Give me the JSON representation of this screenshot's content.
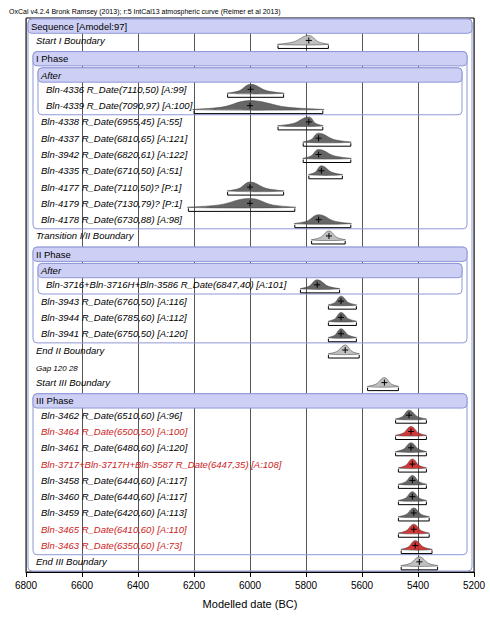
{
  "chart_data": {
    "type": "oxcal_multiplot",
    "title": "OxCal v4.2.4 Bronk Ramsey (2013); r:5 IntCal13 atmospheric curve (Reimer et al 2013)",
    "x_label": "Modelled date (BC)",
    "xlim": [
      6800,
      5200
    ],
    "xticks": [
      6800,
      6600,
      6400,
      6200,
      6000,
      5800,
      5600,
      5400,
      5200
    ],
    "grid": true,
    "model": {
      "kind": "sequence",
      "label": "Sequence [Amodel:97]",
      "items": [
        {
          "kind": "boundary",
          "label": "Start I Boundary",
          "color": "#000000",
          "mean": 5790,
          "range": [
            5900,
            5720
          ]
        },
        {
          "kind": "phase",
          "label": "I Phase",
          "items": [
            {
              "kind": "after",
              "label": "After",
              "items": [
                {
                  "kind": "date",
                  "label": "Bln-4336 R_Date(7110,50) [A:99]",
                  "color": "#000000",
                  "mean": 5998,
                  "range": [
                    6080,
                    5880
                  ]
                },
                {
                  "kind": "date",
                  "label": "Bln-4339 R_Date(7090,97) [A:100]",
                  "color": "#000000",
                  "mean": 6000,
                  "range": [
                    6200,
                    5740
                  ]
                }
              ]
            },
            {
              "kind": "date",
              "label": "Bln-4338 R_Date(6955,45) [A:55]",
              "color": "#000000",
              "mean": 5790,
              "range": [
                5900,
                5740
              ]
            },
            {
              "kind": "date",
              "label": "Bln-4337 R_Date(6810,65) [A:121]",
              "color": "#000000",
              "mean": 5755,
              "range": [
                5810,
                5640
              ]
            },
            {
              "kind": "date",
              "label": "Bln-3942 R_Date(6820,61) [A:122]",
              "color": "#000000",
              "mean": 5755,
              "range": [
                5810,
                5640
              ]
            },
            {
              "kind": "date",
              "label": "Bln-4335 R_Date(6710,50) [A:51]",
              "color": "#000000",
              "mean": 5745,
              "range": [
                5790,
                5670
              ]
            },
            {
              "kind": "date",
              "label": "Bln-4177 R_Date(7110,50)? [P:1]",
              "color": "#000000",
              "mean": 6000,
              "range": [
                6080,
                5880
              ]
            },
            {
              "kind": "date",
              "label": "Bln-4179 R_Date(7130,79)? [P:1]",
              "color": "#000000",
              "mean": 6000,
              "range": [
                6220,
                5840
              ]
            },
            {
              "kind": "date",
              "label": "Bln-4178 R_Date(6730,88) [A:98]",
              "color": "#000000",
              "mean": 5755,
              "range": [
                5840,
                5640
              ]
            }
          ]
        },
        {
          "kind": "boundary",
          "label": "Transition I/II Boundary",
          "color": "#000000",
          "mean": 5718,
          "range": [
            5780,
            5660
          ]
        },
        {
          "kind": "phase",
          "label": "II Phase",
          "items": [
            {
              "kind": "after",
              "label": "After",
              "items": [
                {
                  "kind": "date",
                  "label": "Bln-3716+Bln-3716H+Bln-3586 R_Date(6847,40) [A:101]",
                  "color": "#000000",
                  "mean": 5760,
                  "range": [
                    5820,
                    5680
                  ]
                }
              ]
            },
            {
              "kind": "date",
              "label": "Bln-3943 R_Date(6760,50) [A:116]",
              "color": "#000000",
              "mean": 5675,
              "range": [
                5720,
                5620
              ]
            },
            {
              "kind": "date",
              "label": "Bln-3944 R_Date(6785,60) [A:112]",
              "color": "#000000",
              "mean": 5675,
              "range": [
                5720,
                5620
              ]
            },
            {
              "kind": "date",
              "label": "Bln-3941 R_Date(6750,50) [A:120]",
              "color": "#000000",
              "mean": 5675,
              "range": [
                5720,
                5620
              ]
            }
          ]
        },
        {
          "kind": "boundary",
          "label": "End II Boundary",
          "color": "#000000",
          "mean": 5660,
          "range": [
            5720,
            5610
          ]
        },
        {
          "kind": "note",
          "label": "Gap 120 28"
        },
        {
          "kind": "boundary",
          "label": "Start III Boundary",
          "color": "#000000",
          "mean": 5520,
          "range": [
            5580,
            5470
          ]
        },
        {
          "kind": "phase",
          "label": "III Phase",
          "items": [
            {
              "kind": "date",
              "label": "Bln-3462 R_Date(6510,60) [A:96]",
              "color": "#000000",
              "mean": 5432,
              "range": [
                5480,
                5370
              ]
            },
            {
              "kind": "date",
              "label": "Bln-3464 R_Date(6500,50) [A:100]",
              "color": "#cc2222",
              "mean": 5425,
              "range": [
                5480,
                5370
              ]
            },
            {
              "kind": "date",
              "label": "Bln-3461 R_Date(6480,60) [A:120]",
              "color": "#000000",
              "mean": 5425,
              "range": [
                5480,
                5370
              ]
            },
            {
              "kind": "date",
              "label": "Bln-3717+Bln-3717H+Bln-3587 R_Date(6447,35) [A:108]",
              "color": "#cc2222",
              "mean": 5420,
              "range": [
                5470,
                5370
              ]
            },
            {
              "kind": "date",
              "label": "Bln-3458 R_Date(6440,60) [A:117]",
              "color": "#000000",
              "mean": 5420,
              "range": [
                5470,
                5370
              ]
            },
            {
              "kind": "date",
              "label": "Bln-3460 R_Date(6440,60) [A:117]",
              "color": "#000000",
              "mean": 5420,
              "range": [
                5470,
                5370
              ]
            },
            {
              "kind": "date",
              "label": "Bln-3459 R_Date(6420,60) [A:113]",
              "color": "#000000",
              "mean": 5415,
              "range": [
                5470,
                5360
              ]
            },
            {
              "kind": "date",
              "label": "Bln-3465 R_Date(6410,60) [A:110]",
              "color": "#cc2222",
              "mean": 5415,
              "range": [
                5470,
                5360
              ]
            },
            {
              "kind": "date",
              "label": "Bln-3463 R_Date(6350,60) [A:73]",
              "color": "#cc2222",
              "mean": 5410,
              "range": [
                5460,
                5350
              ]
            }
          ]
        },
        {
          "kind": "boundary",
          "label": "End III Boundary",
          "color": "#000000",
          "mean": 5395,
          "range": [
            5460,
            5330
          ]
        }
      ]
    }
  }
}
